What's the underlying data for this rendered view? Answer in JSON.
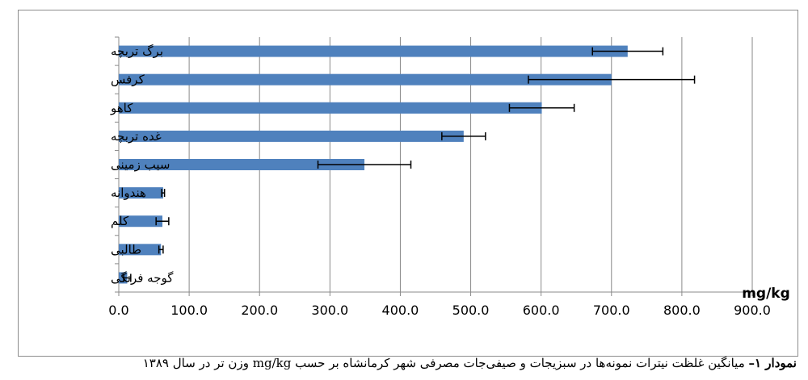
{
  "chart_data": {
    "type": "bar",
    "orientation": "horizontal",
    "categories": [
      "برگ تربچه",
      "کرفس",
      "کاهو",
      "غده تربچه",
      "سیب زمینی",
      "هندوانه",
      "کلم",
      "طالبی",
      "گوجه فرنگی"
    ],
    "values": [
      723,
      700,
      601,
      490,
      349,
      63,
      62,
      60,
      12
    ],
    "error_bars": [
      50,
      118,
      46,
      31,
      66,
      2,
      9,
      3,
      5
    ],
    "x_ticks": [
      "0.0",
      "100.0",
      "200.0",
      "300.0",
      "400.0",
      "500.0",
      "600.0",
      "700.0",
      "800.0",
      "900.0"
    ],
    "xlim": [
      0,
      900
    ],
    "xlabel": "mg/kg",
    "grid": "vertical",
    "bar_color": "#4F81BD"
  },
  "caption": {
    "label": "نمودار ۱–",
    "text": " میانگین غلظت نیترات نمونه‌ها در سبزیجات و صیفی‌جات مصرفی شهر کرمانشاه بر حسب mg/kg وزن تر در سال ۱۳۸۹"
  }
}
